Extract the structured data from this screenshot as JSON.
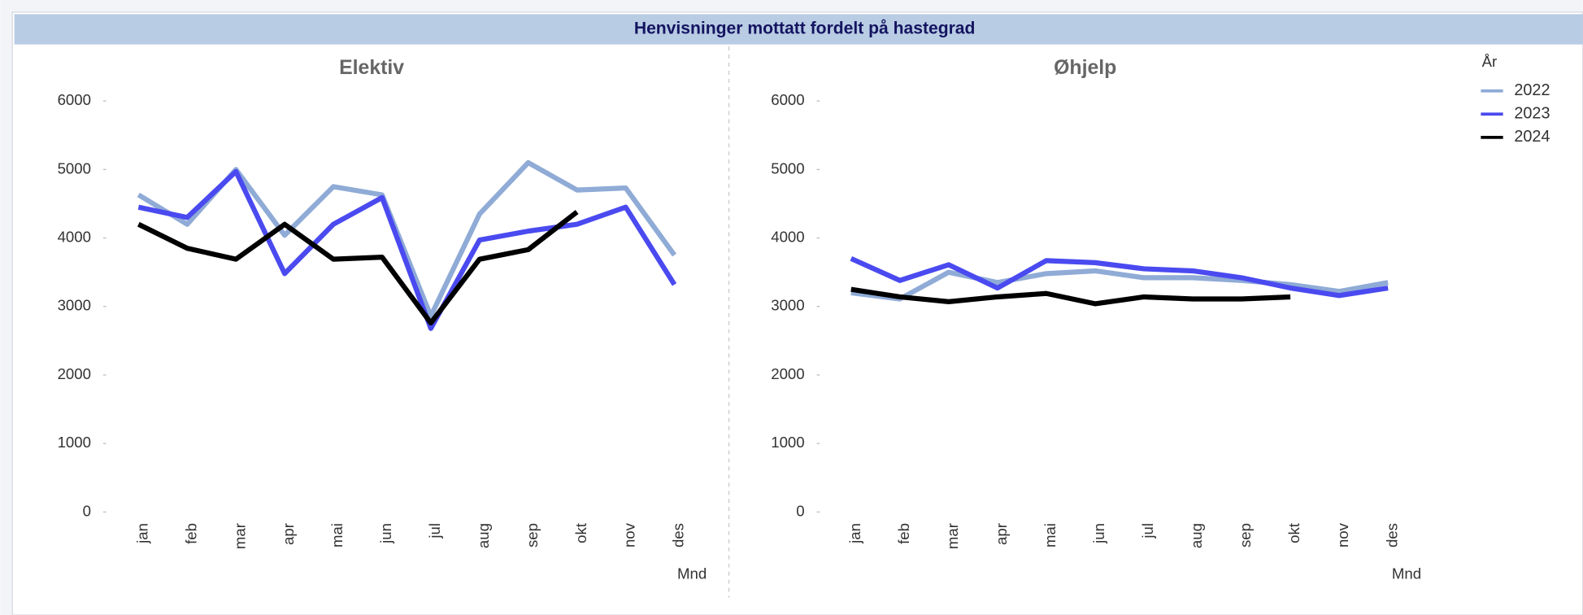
{
  "title": "Henvisninger mottatt fordelt på hastegrad",
  "chart_data": [
    {
      "type": "line",
      "title": "Elektiv",
      "x_label": "Mnd",
      "categories": [
        "jan",
        "feb",
        "mar",
        "apr",
        "mai",
        "jun",
        "jul",
        "aug",
        "sep",
        "okt",
        "nov",
        "des"
      ],
      "ylim": [
        0,
        6000
      ],
      "yticks": [
        0,
        1000,
        2000,
        3000,
        4000,
        5000,
        6000
      ],
      "grid": false,
      "series": [
        {
          "name": "2022",
          "color": "#8fabd6",
          "values": [
            4630,
            4200,
            5000,
            4040,
            4750,
            4630,
            2860,
            4350,
            5100,
            4700,
            4730,
            3750
          ]
        },
        {
          "name": "2023",
          "color": "#4a4af0",
          "values": [
            4450,
            4300,
            4970,
            3480,
            4200,
            4590,
            2680,
            3970,
            4100,
            4200,
            4450,
            3320
          ]
        },
        {
          "name": "2024",
          "color": "#000000",
          "values": [
            4200,
            3850,
            3690,
            4200,
            3690,
            3720,
            2760,
            3690,
            3830,
            4380,
            null,
            null
          ]
        }
      ]
    },
    {
      "type": "line",
      "title": "Øhjelp",
      "x_label": "Mnd",
      "legend_title": "År",
      "legend": "top-right",
      "categories": [
        "jan",
        "feb",
        "mar",
        "apr",
        "mai",
        "jun",
        "jul",
        "aug",
        "sep",
        "okt",
        "nov",
        "des"
      ],
      "ylim": [
        0,
        6000
      ],
      "yticks": [
        0,
        1000,
        2000,
        3000,
        4000,
        5000,
        6000
      ],
      "grid": false,
      "series": [
        {
          "name": "2022",
          "color": "#8fabd6",
          "values": [
            3200,
            3110,
            3500,
            3350,
            3480,
            3520,
            3420,
            3420,
            3380,
            3320,
            3220,
            3350
          ]
        },
        {
          "name": "2023",
          "color": "#4a4af0",
          "values": [
            3700,
            3380,
            3610,
            3270,
            3670,
            3640,
            3550,
            3520,
            3420,
            3270,
            3160,
            3270
          ]
        },
        {
          "name": "2024",
          "color": "#000000",
          "values": [
            3250,
            3140,
            3070,
            3140,
            3190,
            3040,
            3140,
            3110,
            3110,
            3140,
            null,
            null
          ]
        }
      ]
    }
  ]
}
